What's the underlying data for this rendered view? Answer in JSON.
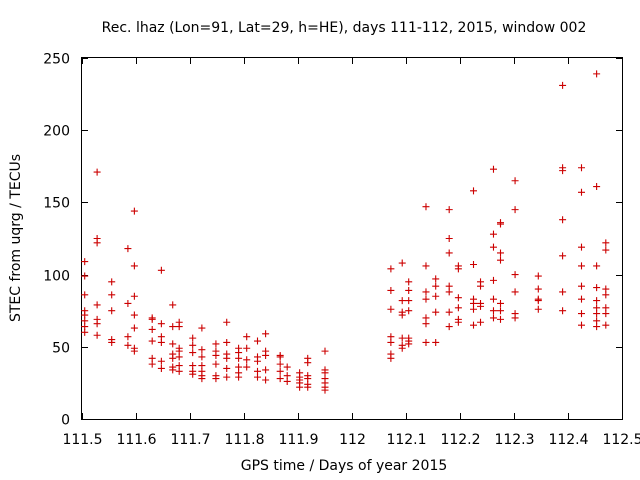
{
  "chart_data": {
    "type": "scatter",
    "title": "Rec. lhaz (Lon=91, Lat=29, h=HE), days 111-112, 2015, window 002",
    "xlabel": "GPS time / Days of year 2015",
    "ylabel": "STEC from uqrg / TECUs",
    "xlim": [
      111.5,
      112.5
    ],
    "ylim": [
      0,
      250
    ],
    "xticks": [
      111.5,
      111.6,
      111.7,
      111.8,
      111.9,
      112.0,
      112.1,
      112.2,
      112.3,
      112.4,
      112.5
    ],
    "xtick_labels": [
      "111.5",
      "111.6",
      "111.7",
      "111.8",
      "111.9",
      "112",
      "112.1",
      "112.2",
      "112.3",
      "112.4",
      "112.5"
    ],
    "yticks": [
      0,
      50,
      100,
      150,
      200,
      250
    ],
    "ytick_labels": [
      "0",
      "50",
      "100",
      "150",
      "200",
      "250"
    ],
    "grid": false,
    "marker": "+",
    "color": "#cc0000",
    "series": [
      {
        "points": [
          [
            111.505,
            109
          ],
          [
            111.505,
            99
          ],
          [
            111.505,
            86
          ],
          [
            111.505,
            75
          ],
          [
            111.505,
            72
          ],
          [
            111.505,
            68
          ],
          [
            111.505,
            64
          ],
          [
            111.505,
            60
          ],
          [
            111.528,
            171
          ],
          [
            111.528,
            125
          ],
          [
            111.528,
            122
          ],
          [
            111.528,
            79
          ],
          [
            111.528,
            69
          ],
          [
            111.528,
            66
          ],
          [
            111.528,
            58
          ],
          [
            111.555,
            95
          ],
          [
            111.555,
            86
          ],
          [
            111.555,
            75
          ],
          [
            111.555,
            55
          ],
          [
            111.555,
            53
          ],
          [
            111.585,
            118
          ],
          [
            111.585,
            80
          ],
          [
            111.585,
            57
          ],
          [
            111.585,
            51
          ],
          [
            111.597,
            144
          ],
          [
            111.597,
            106
          ],
          [
            111.597,
            85
          ],
          [
            111.597,
            72
          ],
          [
            111.597,
            63
          ],
          [
            111.597,
            49
          ],
          [
            111.597,
            47
          ],
          [
            111.63,
            70
          ],
          [
            111.63,
            69
          ],
          [
            111.63,
            62
          ],
          [
            111.63,
            54
          ],
          [
            111.63,
            42
          ],
          [
            111.63,
            38
          ],
          [
            111.647,
            103
          ],
          [
            111.647,
            66
          ],
          [
            111.647,
            57
          ],
          [
            111.647,
            53
          ],
          [
            111.647,
            40
          ],
          [
            111.647,
            35
          ],
          [
            111.668,
            79
          ],
          [
            111.668,
            64
          ],
          [
            111.668,
            52
          ],
          [
            111.668,
            45
          ],
          [
            111.668,
            42
          ],
          [
            111.668,
            36
          ],
          [
            111.668,
            34
          ],
          [
            111.68,
            67
          ],
          [
            111.68,
            64
          ],
          [
            111.68,
            49
          ],
          [
            111.68,
            47
          ],
          [
            111.68,
            43
          ],
          [
            111.68,
            37
          ],
          [
            111.68,
            33
          ],
          [
            111.705,
            56
          ],
          [
            111.705,
            51
          ],
          [
            111.705,
            46
          ],
          [
            111.705,
            37
          ],
          [
            111.705,
            33
          ],
          [
            111.705,
            31
          ],
          [
            111.722,
            63
          ],
          [
            111.722,
            48
          ],
          [
            111.722,
            43
          ],
          [
            111.722,
            37
          ],
          [
            111.722,
            33
          ],
          [
            111.722,
            30
          ],
          [
            111.722,
            28
          ],
          [
            111.748,
            52
          ],
          [
            111.748,
            47
          ],
          [
            111.748,
            44
          ],
          [
            111.748,
            38
          ],
          [
            111.748,
            30
          ],
          [
            111.748,
            28
          ],
          [
            111.768,
            67
          ],
          [
            111.768,
            53
          ],
          [
            111.768,
            45
          ],
          [
            111.768,
            42
          ],
          [
            111.768,
            35
          ],
          [
            111.768,
            29
          ],
          [
            111.79,
            49
          ],
          [
            111.79,
            46
          ],
          [
            111.79,
            42
          ],
          [
            111.79,
            36
          ],
          [
            111.79,
            32
          ],
          [
            111.79,
            29
          ],
          [
            111.805,
            57
          ],
          [
            111.805,
            49
          ],
          [
            111.805,
            41
          ],
          [
            111.805,
            36
          ],
          [
            111.825,
            54
          ],
          [
            111.825,
            43
          ],
          [
            111.825,
            40
          ],
          [
            111.825,
            33
          ],
          [
            111.825,
            29
          ],
          [
            111.84,
            59
          ],
          [
            111.84,
            47
          ],
          [
            111.84,
            44
          ],
          [
            111.84,
            34
          ],
          [
            111.84,
            27
          ],
          [
            111.867,
            44
          ],
          [
            111.867,
            43
          ],
          [
            111.867,
            38
          ],
          [
            111.867,
            33
          ],
          [
            111.867,
            28
          ],
          [
            111.88,
            36
          ],
          [
            111.88,
            30
          ],
          [
            111.88,
            26
          ],
          [
            111.903,
            32
          ],
          [
            111.903,
            29
          ],
          [
            111.903,
            27
          ],
          [
            111.903,
            25
          ],
          [
            111.903,
            22
          ],
          [
            111.918,
            42
          ],
          [
            111.918,
            39
          ],
          [
            111.918,
            30
          ],
          [
            111.918,
            28
          ],
          [
            111.918,
            24
          ],
          [
            111.918,
            22
          ],
          [
            111.95,
            47
          ],
          [
            111.95,
            34
          ],
          [
            111.95,
            32
          ],
          [
            111.95,
            28
          ],
          [
            111.95,
            25
          ],
          [
            111.95,
            22
          ],
          [
            111.95,
            20
          ],
          [
            112.072,
            104
          ],
          [
            112.072,
            89
          ],
          [
            112.072,
            76
          ],
          [
            112.072,
            57
          ],
          [
            112.072,
            53
          ],
          [
            112.072,
            45
          ],
          [
            112.072,
            42
          ],
          [
            112.093,
            108
          ],
          [
            112.093,
            82
          ],
          [
            112.093,
            74
          ],
          [
            112.093,
            72
          ],
          [
            112.093,
            56
          ],
          [
            112.093,
            51
          ],
          [
            112.093,
            49
          ],
          [
            112.105,
            95
          ],
          [
            112.105,
            89
          ],
          [
            112.105,
            82
          ],
          [
            112.105,
            75
          ],
          [
            112.105,
            56
          ],
          [
            112.105,
            54
          ],
          [
            112.105,
            52
          ],
          [
            112.137,
            147
          ],
          [
            112.137,
            106
          ],
          [
            112.137,
            88
          ],
          [
            112.137,
            83
          ],
          [
            112.137,
            70
          ],
          [
            112.137,
            66
          ],
          [
            112.137,
            53
          ],
          [
            112.155,
            97
          ],
          [
            112.155,
            92
          ],
          [
            112.155,
            85
          ],
          [
            112.155,
            74
          ],
          [
            112.155,
            53
          ],
          [
            112.18,
            145
          ],
          [
            112.18,
            125
          ],
          [
            112.18,
            115
          ],
          [
            112.18,
            92
          ],
          [
            112.18,
            88
          ],
          [
            112.18,
            74
          ],
          [
            112.18,
            64
          ],
          [
            112.197,
            106
          ],
          [
            112.197,
            104
          ],
          [
            112.197,
            84
          ],
          [
            112.197,
            77
          ],
          [
            112.197,
            69
          ],
          [
            112.197,
            67
          ],
          [
            112.225,
            158
          ],
          [
            112.225,
            107
          ],
          [
            112.225,
            83
          ],
          [
            112.225,
            80
          ],
          [
            112.225,
            76
          ],
          [
            112.225,
            65
          ],
          [
            112.238,
            95
          ],
          [
            112.238,
            92
          ],
          [
            112.238,
            80
          ],
          [
            112.238,
            78
          ],
          [
            112.238,
            67
          ],
          [
            112.262,
            173
          ],
          [
            112.262,
            128
          ],
          [
            112.262,
            119
          ],
          [
            112.262,
            96
          ],
          [
            112.262,
            83
          ],
          [
            112.262,
            75
          ],
          [
            112.262,
            70
          ],
          [
            112.275,
            136
          ],
          [
            112.275,
            135
          ],
          [
            112.275,
            115
          ],
          [
            112.275,
            110
          ],
          [
            112.275,
            80
          ],
          [
            112.275,
            75
          ],
          [
            112.275,
            69
          ],
          [
            112.302,
            165
          ],
          [
            112.302,
            145
          ],
          [
            112.302,
            100
          ],
          [
            112.302,
            88
          ],
          [
            112.302,
            73
          ],
          [
            112.302,
            70
          ],
          [
            112.345,
            99
          ],
          [
            112.345,
            90
          ],
          [
            112.345,
            83
          ],
          [
            112.345,
            82
          ],
          [
            112.345,
            76
          ],
          [
            112.39,
            231
          ],
          [
            112.39,
            174
          ],
          [
            112.39,
            172
          ],
          [
            112.39,
            138
          ],
          [
            112.39,
            113
          ],
          [
            112.39,
            88
          ],
          [
            112.39,
            75
          ],
          [
            112.425,
            174
          ],
          [
            112.425,
            157
          ],
          [
            112.425,
            119
          ],
          [
            112.425,
            106
          ],
          [
            112.425,
            92
          ],
          [
            112.425,
            83
          ],
          [
            112.425,
            73
          ],
          [
            112.425,
            65
          ],
          [
            112.453,
            239
          ],
          [
            112.453,
            161
          ],
          [
            112.453,
            106
          ],
          [
            112.453,
            91
          ],
          [
            112.453,
            82
          ],
          [
            112.453,
            77
          ],
          [
            112.453,
            73
          ],
          [
            112.453,
            68
          ],
          [
            112.453,
            64
          ],
          [
            112.47,
            122
          ],
          [
            112.47,
            117
          ],
          [
            112.47,
            90
          ],
          [
            112.47,
            86
          ],
          [
            112.47,
            77
          ],
          [
            112.47,
            73
          ],
          [
            112.47,
            65
          ]
        ]
      }
    ]
  }
}
